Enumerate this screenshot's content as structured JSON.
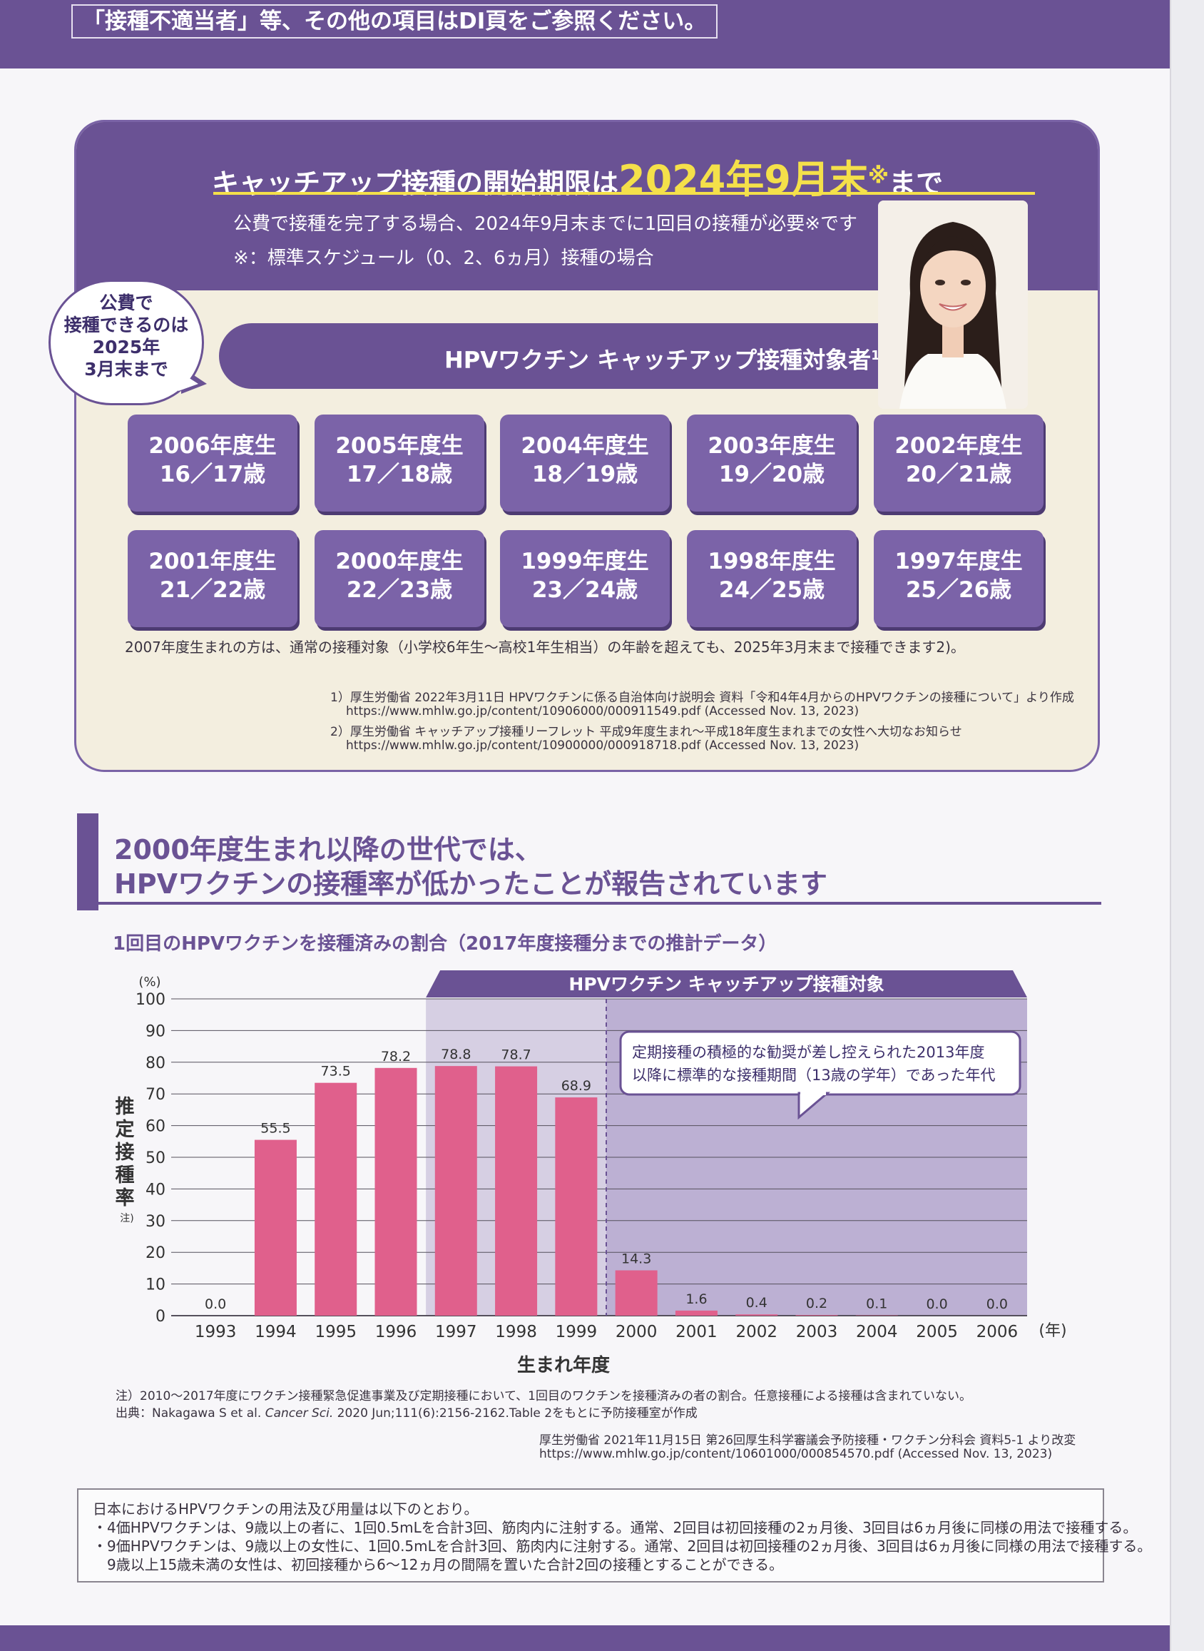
{
  "top_note": "「接種不適当者」等、その他の項目はDI頁をご参照ください。",
  "catchup": {
    "headline_pre": "キャッチアップ接種の開始期限は",
    "headline_deadline": "2024年9月末",
    "headline_mark": "※",
    "headline_post": "まで",
    "subline1": "公費で接種を完了する場合、2024年9月末までに1回目の接種が必要※です",
    "subline2": "※：標準スケジュール（0、2、6ヵ月）接種の場合",
    "bubble": [
      "公費で",
      "接種できるのは",
      "2025年",
      "3月末まで"
    ],
    "banner": "HPVワクチン キャッチアップ接種対象者",
    "banner_ref": "1)",
    "cohorts": [
      {
        "year": "2006年度生",
        "age": "16／17歳"
      },
      {
        "year": "2005年度生",
        "age": "17／18歳"
      },
      {
        "year": "2004年度生",
        "age": "18／19歳"
      },
      {
        "year": "2003年度生",
        "age": "19／20歳"
      },
      {
        "year": "2002年度生",
        "age": "20／21歳"
      },
      {
        "year": "2001年度生",
        "age": "21／22歳"
      },
      {
        "year": "2000年度生",
        "age": "22／23歳"
      },
      {
        "year": "1999年度生",
        "age": "23／24歳"
      },
      {
        "year": "1998年度生",
        "age": "24／25歳"
      },
      {
        "year": "1997年度生",
        "age": "25／26歳"
      }
    ],
    "note": "2007年度生まれの方は、通常の接種対象（小学校6年生～高校1年生相当）の年齢を超えても、2025年3月末まで接種できます2)。",
    "ref1a": "1）厚生労働省 2022年3月11日 HPVワクチンに係る自治体向け説明会 資料「令和4年4月からのHPVワクチンの接種について」より作成",
    "ref1b": "https://www.mhlw.go.jp/content/10906000/000911549.pdf (Accessed Nov. 13, 2023)",
    "ref2a": "2）厚生労働省 キャッチアップ接種リーフレット 平成9年度生まれ～平成18年度生まれまでの女性へ大切なお知らせ",
    "ref2b": "https://www.mhlw.go.jp/content/10900000/000918718.pdf (Accessed Nov. 13, 2023)"
  },
  "section": {
    "heading1": "2000年度生まれ以降の世代では、",
    "heading2": "HPVワクチンの接種率が低かったことが報告されています"
  },
  "chart_title": "1回目のHPVワクチンを接種済みの割合（2017年度接種分までの推計データ）",
  "chart_data": {
    "type": "bar",
    "categories": [
      "1993",
      "1994",
      "1995",
      "1996",
      "1997",
      "1998",
      "1999",
      "2000",
      "2001",
      "2002",
      "2003",
      "2004",
      "2005",
      "2006"
    ],
    "values": [
      0.0,
      55.5,
      73.5,
      78.2,
      78.8,
      78.7,
      68.9,
      14.3,
      1.6,
      0.4,
      0.2,
      0.1,
      0.0,
      0.0
    ],
    "value_labels": [
      "0.0",
      "55.5",
      "73.5",
      "78.2",
      "78.8",
      "78.7",
      "68.9",
      "14.3",
      "1.6",
      "0.4",
      "0.2",
      "0.1",
      "0.0",
      "0.0"
    ],
    "yticks": [
      "0",
      "10",
      "20",
      "30",
      "40",
      "50",
      "60",
      "70",
      "80",
      "90",
      "100"
    ],
    "ylim": [
      0,
      100
    ],
    "yunit": "(%)",
    "ylabel": "推定接種率",
    "ylabel_note": "注)",
    "xlabel": "生まれ年度",
    "xunit": "(年)",
    "catchup_label": "HPVワクチン キャッチアップ接種対象",
    "catchup_range": [
      "1997",
      "2006"
    ],
    "callout_range": [
      "2000",
      "2006"
    ],
    "callout_line1": "定期接種の積極的な勧奨が差し控えられた2013年度",
    "callout_line2": "以降に標準的な接種期間（13歳の学年）であった年代",
    "bar_color": "#e0608c",
    "grid": true
  },
  "notes": {
    "note1": "注）2010～2017年度にワクチン接種緊急促進事業及び定期接種において、1回目のワクチンを接種済みの者の割合。任意接種による接種は含まれていない。",
    "note2_pre": "出典：Nakagawa S et al. ",
    "note2_journal": "Cancer Sci.",
    "note2_post": " 2020 Jun;111(6):2156-2162.Table 2をもとに予防接種室が作成",
    "src1": "厚生労働省 2021年11月15日 第26回厚生科学審議会予防接種・ワクチン分科会 資料5-1 より改変",
    "src2": "https://www.mhlw.go.jp/content/10601000/000854570.pdf (Accessed Nov. 13, 2023)"
  },
  "dosage": {
    "line1": "日本におけるHPVワクチンの用法及び用量は以下のとおり。",
    "line2": "・4価HPVワクチンは、9歳以上の者に、1回0.5mLを合計3回、筋肉内に注射する。通常、2回目は初回接種の2ヵ月後、3回目は6ヵ月後に同様の用法で接種する。",
    "line3": "・9価HPVワクチンは、9歳以上の女性に、1回0.5mLを合計3回、筋肉内に注射する。通常、2回目は初回接種の2ヵ月後、3回目は6ヵ月後に同様の用法で接種する。",
    "line4": "　9歳以上15歳未満の女性は、初回接種から6～12ヵ月の間隔を置いた合計2回の接種とすることができる。"
  },
  "colors": {
    "brand_purple": "#6a5294",
    "accent_yellow": "#f4e04a",
    "panel_beige": "#f3eedf"
  }
}
